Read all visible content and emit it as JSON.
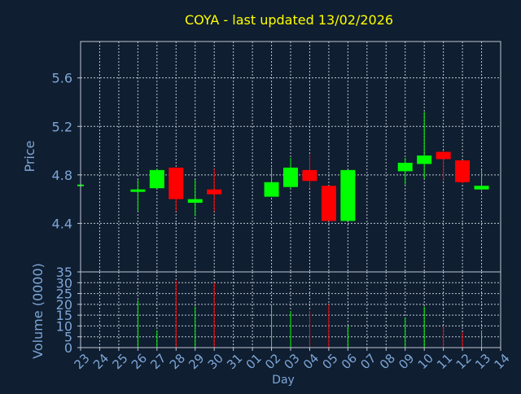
{
  "chart_data": {
    "type": "candlestick",
    "title": "COYA - last updated 13/02/2026",
    "xlabel": "Day",
    "colors": {
      "background": "#0f1e30",
      "title": "#ffff00",
      "axis_text": "#7ea6d8",
      "frame": "#bfc7d3",
      "grid": "#bfc7d3",
      "up": "#00ff00",
      "down": "#ff0000"
    },
    "x_ticks": [
      "23",
      "24",
      "25",
      "26",
      "27",
      "28",
      "29",
      "30",
      "31",
      "01",
      "02",
      "03",
      "04",
      "05",
      "06",
      "07",
      "08",
      "09",
      "10",
      "11",
      "12",
      "13",
      "14"
    ],
    "price_panel": {
      "ylabel": "Price",
      "ylim": [
        4.0,
        5.9
      ],
      "ticks": [
        "4.4",
        "4.8",
        "5.2",
        "5.6"
      ],
      "tick_values": [
        4.4,
        4.8,
        5.2,
        5.6
      ],
      "candles": [
        {
          "day": "23",
          "open": 4.72,
          "high": 4.72,
          "low": 4.72,
          "close": 4.72
        },
        {
          "day": "26",
          "open": 4.66,
          "high": 4.76,
          "low": 4.5,
          "close": 4.68
        },
        {
          "day": "27",
          "open": 4.69,
          "high": 4.85,
          "low": 4.69,
          "close": 4.84
        },
        {
          "day": "28",
          "open": 4.86,
          "high": 4.86,
          "low": 4.5,
          "close": 4.6
        },
        {
          "day": "29",
          "open": 4.57,
          "high": 4.76,
          "low": 4.46,
          "close": 4.6
        },
        {
          "day": "30",
          "open": 4.68,
          "high": 4.85,
          "low": 4.5,
          "close": 4.64
        },
        {
          "day": "02",
          "open": 4.62,
          "high": 4.86,
          "low": 4.62,
          "close": 4.74
        },
        {
          "day": "03",
          "open": 4.7,
          "high": 4.94,
          "low": 4.69,
          "close": 4.86
        },
        {
          "day": "04",
          "open": 4.84,
          "high": 4.97,
          "low": 4.69,
          "close": 4.75
        },
        {
          "day": "05",
          "open": 4.71,
          "high": 4.71,
          "low": 4.42,
          "close": 4.42
        },
        {
          "day": "06",
          "open": 4.42,
          "high": 4.84,
          "low": 4.42,
          "close": 4.84
        },
        {
          "day": "09",
          "open": 4.83,
          "high": 4.94,
          "low": 4.72,
          "close": 4.9
        },
        {
          "day": "10",
          "open": 4.89,
          "high": 5.32,
          "low": 4.77,
          "close": 4.96
        },
        {
          "day": "11",
          "open": 4.99,
          "high": 5.0,
          "low": 4.75,
          "close": 4.93
        },
        {
          "day": "12",
          "open": 4.92,
          "high": 4.92,
          "low": 4.73,
          "close": 4.74
        },
        {
          "day": "13",
          "open": 4.68,
          "high": 4.84,
          "low": 4.67,
          "close": 4.71
        }
      ]
    },
    "volume_panel": {
      "ylabel": "Volume (0000)",
      "ylim": [
        0,
        35
      ],
      "ticks": [
        "0",
        "5",
        "10",
        "15",
        "20",
        "25",
        "30",
        "35"
      ],
      "tick_values": [
        0,
        5,
        10,
        15,
        20,
        25,
        30,
        35
      ],
      "bars": [
        {
          "day": "23",
          "value": 0
        },
        {
          "day": "26",
          "value": 22
        },
        {
          "day": "27",
          "value": 8
        },
        {
          "day": "28",
          "value": 31
        },
        {
          "day": "29",
          "value": 19
        },
        {
          "day": "30",
          "value": 30
        },
        {
          "day": "02",
          "value": 20
        },
        {
          "day": "03",
          "value": 17
        },
        {
          "day": "04",
          "value": 17
        },
        {
          "day": "05",
          "value": 20
        },
        {
          "day": "06",
          "value": 10
        },
        {
          "day": "09",
          "value": 14
        },
        {
          "day": "10",
          "value": 19
        },
        {
          "day": "11",
          "value": 10
        },
        {
          "day": "12",
          "value": 7
        },
        {
          "day": "13",
          "value": 8
        }
      ]
    }
  }
}
